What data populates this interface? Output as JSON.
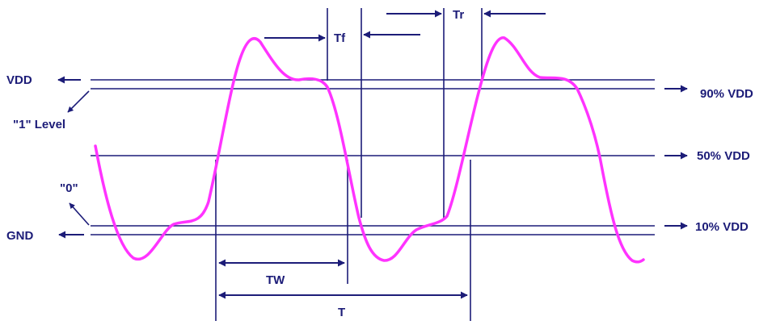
{
  "colors": {
    "line": "#1c1c78",
    "waveform": "#ff33ff",
    "background": "#ffffff"
  },
  "labels": {
    "vdd": "VDD",
    "one_level": "\"1\" Level",
    "zero": "\"0\"",
    "gnd": "GND",
    "pct90": "90% VDD",
    "pct50": "50% VDD",
    "pct10": "10% VDD",
    "tf": "Tf",
    "tr": "Tr",
    "tw": "TW",
    "t": "T"
  }
}
